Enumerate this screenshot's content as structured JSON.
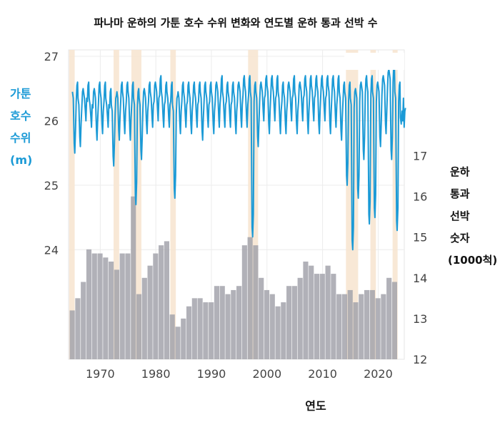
{
  "chart_data": {
    "type": "bar+line",
    "title": "파나마 운하의 가툰 호수 수위 변화와 연도별 운하 통과 선박 수",
    "xlabel": "연도",
    "ylabel_left": [
      "가툰",
      "호수",
      "수위",
      "(m)"
    ],
    "ylabel_right": [
      "운하",
      "통과",
      "선박",
      "숫자",
      "(1000척)"
    ],
    "x_ticks": [
      1970,
      1980,
      1990,
      2000,
      2010,
      2020
    ],
    "left_axis": {
      "ticks": [
        24,
        25,
        26,
        27
      ],
      "range": [
        22.3,
        27.1
      ]
    },
    "right_axis": {
      "ticks": [
        12,
        13,
        14,
        15,
        16,
        17
      ],
      "range": [
        12,
        19.6
      ]
    },
    "colors": {
      "line": "#1b9ad6",
      "bars": "#a3a3ab",
      "shade": "#f7e6d2"
    },
    "dry_periods": [
      [
        1964.4,
        1965.4
      ],
      [
        1972.4,
        1973.4
      ],
      [
        1975.6,
        1977.4
      ],
      [
        1982.6,
        1983.6
      ],
      [
        1996.6,
        1998.4
      ],
      [
        2014.2,
        2016.4
      ],
      [
        2018.6,
        2019.6
      ],
      [
        2022.6,
        2023.5
      ]
    ],
    "annual_transits": {
      "years": [
        1965,
        1966,
        1967,
        1968,
        1969,
        1970,
        1971,
        1972,
        1973,
        1974,
        1975,
        1976,
        1977,
        1978,
        1979,
        1980,
        1981,
        1982,
        1983,
        1984,
        1985,
        1986,
        1987,
        1988,
        1989,
        1990,
        1991,
        1992,
        1993,
        1994,
        1995,
        1996,
        1997,
        1998,
        1999,
        2000,
        2001,
        2002,
        2003,
        2004,
        2005,
        2006,
        2007,
        2008,
        2009,
        2010,
        2011,
        2012,
        2013,
        2014,
        2015,
        2016,
        2017,
        2018,
        2019,
        2020,
        2021,
        2022,
        2023
      ],
      "values": [
        13.2,
        13.5,
        13.9,
        14.7,
        14.6,
        14.6,
        14.5,
        14.4,
        14.2,
        14.6,
        14.6,
        16.0,
        13.6,
        14.0,
        14.3,
        14.6,
        14.8,
        14.9,
        13.1,
        12.8,
        13.0,
        13.3,
        13.5,
        13.5,
        13.4,
        13.4,
        13.8,
        13.8,
        13.6,
        13.7,
        13.8,
        14.8,
        15.0,
        14.8,
        14.0,
        13.7,
        13.6,
        13.3,
        13.4,
        13.8,
        13.8,
        14.0,
        14.4,
        14.3,
        14.1,
        14.1,
        14.3,
        14.1,
        13.6,
        13.6,
        13.7,
        13.4,
        13.6,
        13.7,
        13.7,
        13.5,
        13.6,
        14.0,
        13.9
      ]
    },
    "gatun_lake_level_annual_min_max": {
      "years": [
        1965,
        1966,
        1967,
        1968,
        1969,
        1970,
        1971,
        1972,
        1973,
        1974,
        1975,
        1976,
        1977,
        1978,
        1979,
        1980,
        1981,
        1982,
        1983,
        1984,
        1985,
        1986,
        1987,
        1988,
        1989,
        1990,
        1991,
        1992,
        1993,
        1994,
        1995,
        1996,
        1997,
        1998,
        1999,
        2000,
        2001,
        2002,
        2003,
        2004,
        2005,
        2006,
        2007,
        2008,
        2009,
        2010,
        2011,
        2012,
        2013,
        2014,
        2015,
        2016,
        2017,
        2018,
        2019,
        2020,
        2021,
        2022,
        2023,
        2024
      ],
      "min": [
        25.5,
        25.6,
        26.0,
        25.9,
        25.7,
        25.8,
        25.9,
        25.3,
        25.7,
        25.8,
        25.7,
        24.7,
        25.4,
        25.8,
        25.9,
        26.0,
        25.9,
        25.9,
        24.8,
        25.8,
        25.9,
        25.8,
        25.9,
        25.7,
        25.9,
        25.8,
        25.9,
        25.9,
        25.9,
        25.8,
        25.9,
        25.9,
        24.2,
        25.6,
        26.0,
        25.8,
        26.0,
        25.8,
        25.8,
        26.0,
        25.8,
        26.0,
        25.8,
        26.0,
        25.8,
        26.0,
        25.8,
        25.9,
        25.7,
        25.0,
        24.0,
        24.8,
        25.4,
        24.4,
        24.5,
        25.6,
        25.8,
        25.4,
        24.3,
        26.0
      ],
      "max": [
        26.6,
        26.5,
        26.6,
        26.5,
        26.6,
        26.6,
        26.5,
        26.4,
        26.6,
        26.6,
        26.6,
        26.5,
        26.5,
        26.6,
        26.6,
        26.7,
        26.6,
        26.6,
        26.4,
        26.6,
        26.6,
        26.6,
        26.6,
        26.6,
        26.6,
        26.6,
        26.7,
        26.6,
        26.6,
        26.6,
        26.7,
        26.7,
        26.6,
        26.6,
        26.7,
        26.7,
        26.7,
        26.6,
        26.6,
        26.7,
        26.6,
        26.7,
        26.7,
        26.7,
        26.7,
        26.7,
        26.7,
        26.7,
        26.6,
        26.6,
        26.5,
        26.6,
        26.7,
        26.7,
        26.6,
        26.7,
        26.8,
        26.9,
        26.6,
        26.2
      ]
    }
  }
}
